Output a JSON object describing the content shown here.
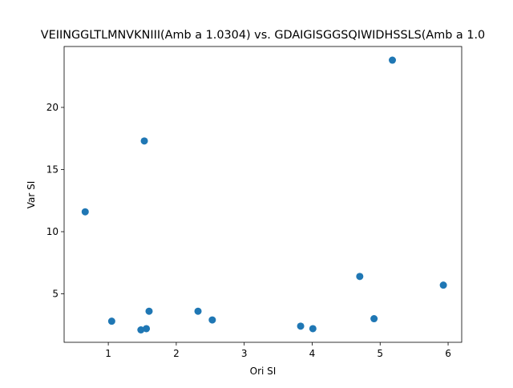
{
  "chart_data": {
    "type": "scatter",
    "title": "VEIINGGLTLMNVKNIII(Amb a 1.0304) vs. GDAIGISGGSQIWIDHSSLS(Amb a 1.0",
    "xlabel": "Ori SI",
    "ylabel": "Var SI",
    "xlim": [
      0.35,
      6.2
    ],
    "ylim": [
      1.1,
      24.9
    ],
    "x_ticks": [
      1,
      2,
      3,
      4,
      5,
      6
    ],
    "y_ticks": [
      5,
      10,
      15,
      20
    ],
    "x_tick_labels": [
      "1",
      "2",
      "3",
      "4",
      "5",
      "6"
    ],
    "y_tick_labels": [
      "5",
      "10",
      "15",
      "20"
    ],
    "grid": false,
    "legend": "none",
    "marker_color": "#1f77b4",
    "points": [
      {
        "x": 0.66,
        "y": 11.6
      },
      {
        "x": 1.05,
        "y": 2.8
      },
      {
        "x": 1.48,
        "y": 2.1
      },
      {
        "x": 1.53,
        "y": 17.3
      },
      {
        "x": 1.56,
        "y": 2.2
      },
      {
        "x": 1.6,
        "y": 3.6
      },
      {
        "x": 2.32,
        "y": 3.6
      },
      {
        "x": 2.53,
        "y": 2.9
      },
      {
        "x": 3.83,
        "y": 2.4
      },
      {
        "x": 4.01,
        "y": 2.2
      },
      {
        "x": 4.7,
        "y": 6.4
      },
      {
        "x": 4.91,
        "y": 3.0
      },
      {
        "x": 5.18,
        "y": 23.8
      },
      {
        "x": 5.93,
        "y": 5.7
      }
    ]
  }
}
